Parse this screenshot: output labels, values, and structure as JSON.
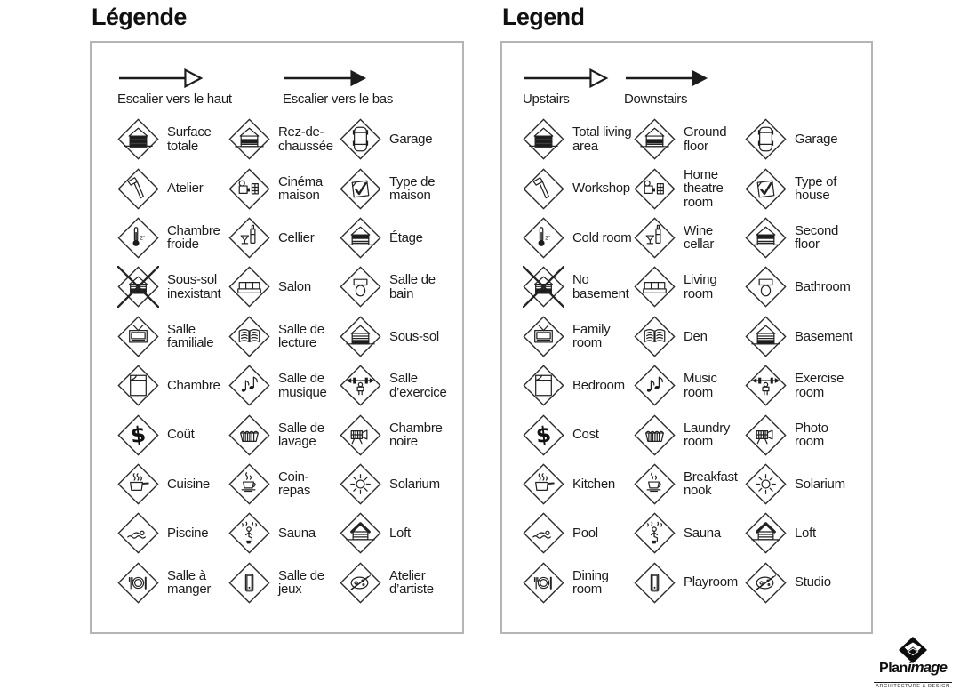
{
  "panels": [
    {
      "id": "french",
      "title": "Légende",
      "arrows": [
        {
          "label": "Escalier vers le haut",
          "style": "outline"
        },
        {
          "label": "Escalier vers le bas",
          "style": "filled"
        }
      ],
      "items": [
        {
          "icon": "total-living-area",
          "label": "Surface totale"
        },
        {
          "icon": "ground-floor",
          "label": "Rez-de-chaussée"
        },
        {
          "icon": "garage",
          "label": "Garage"
        },
        {
          "icon": "workshop",
          "label": "Atelier"
        },
        {
          "icon": "home-theatre",
          "label": "Cinéma maison"
        },
        {
          "icon": "type-of-house",
          "label": "Type de maison"
        },
        {
          "icon": "cold-room",
          "label": "Chambre froide"
        },
        {
          "icon": "wine-cellar",
          "label": "Cellier"
        },
        {
          "icon": "second-floor",
          "label": "Étage"
        },
        {
          "icon": "no-basement",
          "label": "Sous-sol inexistant"
        },
        {
          "icon": "living-room",
          "label": "Salon"
        },
        {
          "icon": "bathroom",
          "label": "Salle de bain"
        },
        {
          "icon": "family-room",
          "label": "Salle familiale"
        },
        {
          "icon": "den",
          "label": "Salle de lecture"
        },
        {
          "icon": "basement",
          "label": "Sous-sol"
        },
        {
          "icon": "bedroom",
          "label": "Chambre"
        },
        {
          "icon": "music-room",
          "label": "Salle de musique"
        },
        {
          "icon": "exercise-room",
          "label": "Salle d’exercice"
        },
        {
          "icon": "cost",
          "label": "Coût"
        },
        {
          "icon": "laundry-room",
          "label": "Salle de lavage"
        },
        {
          "icon": "photo-room",
          "label": "Chambre noire"
        },
        {
          "icon": "kitchen",
          "label": "Cuisine"
        },
        {
          "icon": "breakfast-nook",
          "label": "Coin-repas"
        },
        {
          "icon": "solarium",
          "label": "Solarium"
        },
        {
          "icon": "pool",
          "label": "Piscine"
        },
        {
          "icon": "sauna",
          "label": "Sauna"
        },
        {
          "icon": "loft",
          "label": "Loft"
        },
        {
          "icon": "dining-room",
          "label": "Salle à manger"
        },
        {
          "icon": "playroom",
          "label": "Salle de jeux"
        },
        {
          "icon": "studio",
          "label": "Atelier d’artiste"
        }
      ]
    },
    {
      "id": "english",
      "title": "Legend",
      "arrows": [
        {
          "label": "Upstairs",
          "style": "outline"
        },
        {
          "label": "Downstairs",
          "style": "filled"
        }
      ],
      "items": [
        {
          "icon": "total-living-area",
          "label": "Total living area"
        },
        {
          "icon": "ground-floor",
          "label": "Ground floor"
        },
        {
          "icon": "garage",
          "label": "Garage"
        },
        {
          "icon": "workshop",
          "label": "Workshop"
        },
        {
          "icon": "home-theatre",
          "label": "Home theatre room"
        },
        {
          "icon": "type-of-house",
          "label": "Type of house"
        },
        {
          "icon": "cold-room",
          "label": "Cold room"
        },
        {
          "icon": "wine-cellar",
          "label": "Wine cellar"
        },
        {
          "icon": "second-floor",
          "label": "Second floor"
        },
        {
          "icon": "no-basement",
          "label": "No basement"
        },
        {
          "icon": "living-room",
          "label": "Living room"
        },
        {
          "icon": "bathroom",
          "label": "Bathroom"
        },
        {
          "icon": "family-room",
          "label": "Family room"
        },
        {
          "icon": "den",
          "label": "Den"
        },
        {
          "icon": "basement",
          "label": "Basement"
        },
        {
          "icon": "bedroom",
          "label": "Bedroom"
        },
        {
          "icon": "music-room",
          "label": "Music room"
        },
        {
          "icon": "exercise-room",
          "label": "Exercise room"
        },
        {
          "icon": "cost",
          "label": "Cost"
        },
        {
          "icon": "laundry-room",
          "label": "Laundry room"
        },
        {
          "icon": "photo-room",
          "label": "Photo room"
        },
        {
          "icon": "kitchen",
          "label": "Kitchen"
        },
        {
          "icon": "breakfast-nook",
          "label": "Breakfast nook"
        },
        {
          "icon": "solarium",
          "label": "Solarium"
        },
        {
          "icon": "pool",
          "label": "Pool"
        },
        {
          "icon": "sauna",
          "label": "Sauna"
        },
        {
          "icon": "loft",
          "label": "Loft"
        },
        {
          "icon": "dining-room",
          "label": "Dining room"
        },
        {
          "icon": "playroom",
          "label": "Playroom"
        },
        {
          "icon": "studio",
          "label": "Studio"
        }
      ]
    }
  ],
  "icon_texts": {
    "cold_room_degree": "2°",
    "cost_symbol": "$"
  },
  "logo": {
    "brand_primary": "Plan",
    "brand_secondary": "image",
    "tagline": "ARCHITECTURE & DESIGN"
  },
  "colors": {
    "ink": "#1d1d1d",
    "panel_border": "#b5b5b5",
    "background": "#ffffff"
  }
}
